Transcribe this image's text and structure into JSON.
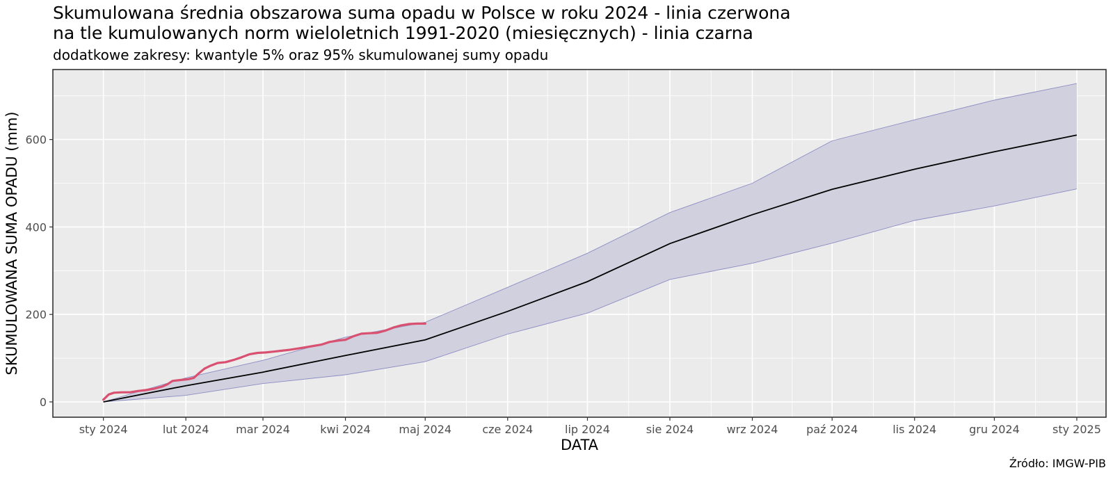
{
  "chart_data": {
    "type": "line",
    "title_lines": [
      "Skumulowana średnia obszarowa suma opadu w Polsce w roku 2024 - linia czerwona",
      "na tle kumulowanych norm wieloletnich 1991-2020 (miesięcznych) - linia czarna"
    ],
    "subtitle": "dodatkowe zakresy: kwantyle 5% oraz 95% skumulowanej sumy opadu",
    "xlabel": "DATA",
    "ylabel": "SKUMULOWANA SUMA OPADU (mm)",
    "caption": "Źródło: IMGW-PIB",
    "xlim": [
      "2023-12-13",
      "2025-01-12"
    ],
    "ylim": [
      -35,
      760
    ],
    "x_ticks": [
      {
        "date": "2024-01-01",
        "label": "sty 2024"
      },
      {
        "date": "2024-02-01",
        "label": "lut 2024"
      },
      {
        "date": "2024-03-01",
        "label": "mar 2024"
      },
      {
        "date": "2024-04-01",
        "label": "kwi 2024"
      },
      {
        "date": "2024-05-01",
        "label": "maj 2024"
      },
      {
        "date": "2024-06-01",
        "label": "cze 2024"
      },
      {
        "date": "2024-07-01",
        "label": "lip 2024"
      },
      {
        "date": "2024-08-01",
        "label": "sie 2024"
      },
      {
        "date": "2024-09-01",
        "label": "wrz 2024"
      },
      {
        "date": "2024-10-01",
        "label": "paź 2024"
      },
      {
        "date": "2024-11-01",
        "label": "lis 2024"
      },
      {
        "date": "2024-12-01",
        "label": "gru 2024"
      },
      {
        "date": "2025-01-01",
        "label": "sty 2025"
      }
    ],
    "y_ticks": [
      0,
      200,
      400,
      600
    ],
    "grid": true,
    "colors": {
      "panel": "#ebebeb",
      "grid": "#ffffff",
      "band_fill": "#d0d0de",
      "band_edge": "#8c8cc4",
      "norm_line": "#000000",
      "actual_line": "#d95070"
    },
    "series": [
      {
        "name": "kwantyl 95%",
        "x": [
          "2024-01-01",
          "2024-02-01",
          "2024-03-01",
          "2024-04-01",
          "2024-05-01",
          "2024-06-01",
          "2024-07-01",
          "2024-08-01",
          "2024-09-01",
          "2024-10-01",
          "2024-11-01",
          "2024-12-01",
          "2025-01-01"
        ],
        "y": [
          0,
          55,
          95,
          148,
          182,
          262,
          340,
          433,
          500,
          597,
          645,
          690,
          728
        ]
      },
      {
        "name": "norma 1991-2020",
        "x": [
          "2024-01-01",
          "2024-02-01",
          "2024-03-01",
          "2024-04-01",
          "2024-05-01",
          "2024-06-01",
          "2024-07-01",
          "2024-08-01",
          "2024-09-01",
          "2024-10-01",
          "2024-11-01",
          "2024-12-01",
          "2025-01-01"
        ],
        "y": [
          0,
          37,
          68,
          106,
          142,
          207,
          275,
          362,
          428,
          486,
          532,
          572,
          610
        ]
      },
      {
        "name": "kwantyl 5%",
        "x": [
          "2024-01-01",
          "2024-02-01",
          "2024-03-01",
          "2024-04-01",
          "2024-05-01",
          "2024-06-01",
          "2024-07-01",
          "2024-08-01",
          "2024-09-01",
          "2024-10-01",
          "2024-11-01",
          "2024-12-01",
          "2025-01-01"
        ],
        "y": [
          0,
          15,
          42,
          62,
          92,
          155,
          203,
          280,
          317,
          363,
          415,
          448,
          487
        ]
      },
      {
        "name": "2024",
        "x": [
          "2024-01-01",
          "2024-01-03",
          "2024-01-05",
          "2024-01-08",
          "2024-01-11",
          "2024-01-14",
          "2024-01-17",
          "2024-01-20",
          "2024-01-23",
          "2024-01-25",
          "2024-01-27",
          "2024-01-30",
          "2024-02-02",
          "2024-02-04",
          "2024-02-06",
          "2024-02-08",
          "2024-02-10",
          "2024-02-13",
          "2024-02-16",
          "2024-02-19",
          "2024-02-22",
          "2024-02-25",
          "2024-02-28",
          "2024-03-02",
          "2024-03-05",
          "2024-03-08",
          "2024-03-11",
          "2024-03-14",
          "2024-03-17",
          "2024-03-20",
          "2024-03-23",
          "2024-03-26",
          "2024-03-29",
          "2024-04-01",
          "2024-04-04",
          "2024-04-07",
          "2024-04-10",
          "2024-04-13",
          "2024-04-16",
          "2024-04-19",
          "2024-04-22",
          "2024-04-25",
          "2024-04-28",
          "2024-05-01"
        ],
        "y": [
          5,
          17,
          21,
          22,
          22,
          25,
          27,
          30,
          35,
          40,
          48,
          50,
          52,
          55,
          66,
          76,
          82,
          89,
          91,
          96,
          102,
          109,
          112,
          113,
          115,
          117,
          119,
          122,
          125,
          128,
          131,
          137,
          140,
          142,
          150,
          156,
          157,
          158,
          163,
          170,
          175,
          178,
          179,
          179
        ]
      }
    ]
  }
}
